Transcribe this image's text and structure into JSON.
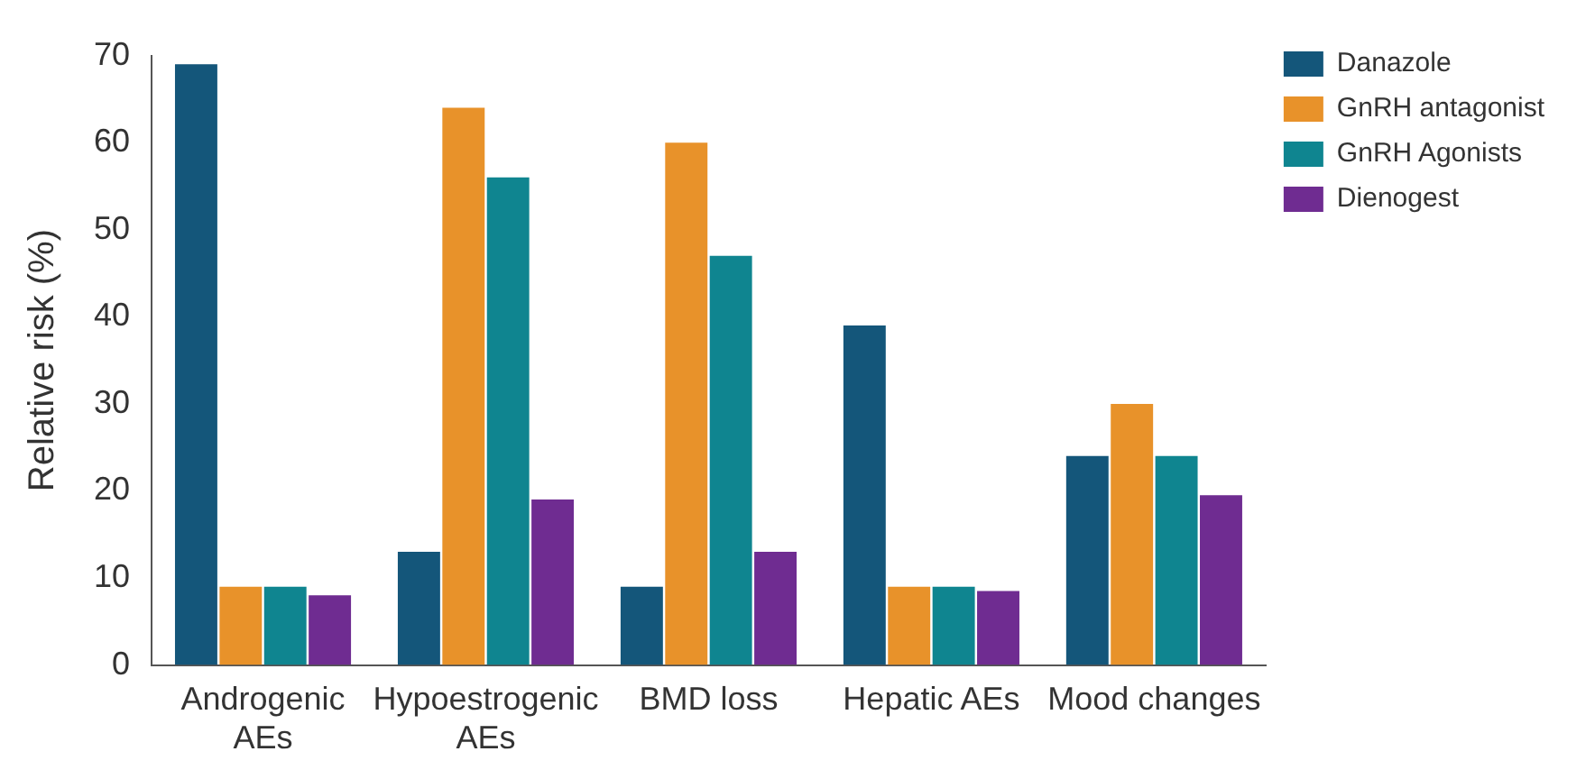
{
  "chart_data": {
    "type": "bar",
    "ylabel": "Relative risk (%)",
    "categories": [
      "Androgenic AEs",
      "Hypoestrogenic AEs",
      "BMD loss",
      "Hepatic AEs",
      "Mood changes"
    ],
    "series": [
      {
        "name": "Danazole",
        "color": "#14567a",
        "values": [
          69,
          13,
          9,
          39,
          24
        ]
      },
      {
        "name": "GnRH antagonist",
        "color": "#e8922a",
        "values": [
          9,
          64,
          60,
          9,
          30
        ]
      },
      {
        "name": "GnRH Agonists",
        "color": "#0f8590",
        "values": [
          9,
          56,
          47,
          9,
          24
        ]
      },
      {
        "name": "Dienogest",
        "color": "#6f2c91",
        "values": [
          8,
          19,
          13,
          8.5,
          19.5
        ]
      }
    ],
    "ylim": [
      0,
      70
    ],
    "yticks": [
      0,
      10,
      20,
      30,
      40,
      50,
      60,
      70
    ],
    "grid": false,
    "legend": "top right"
  }
}
